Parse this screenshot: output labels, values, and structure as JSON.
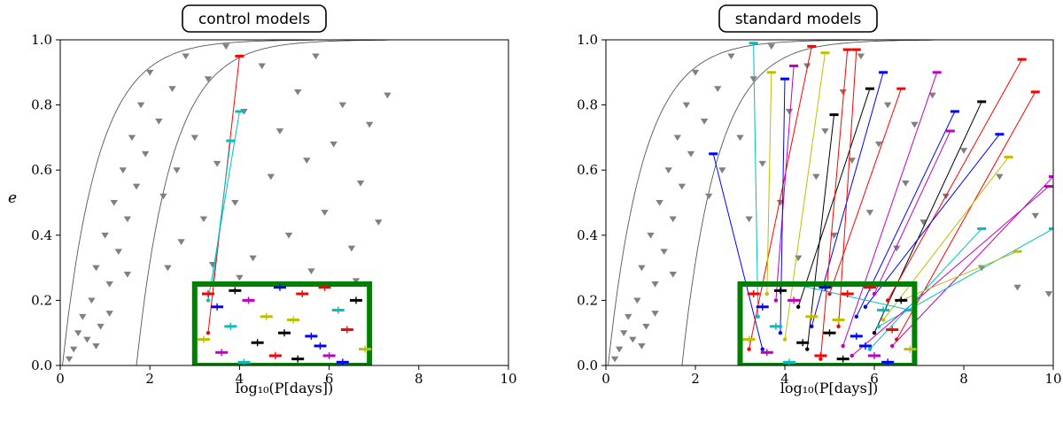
{
  "chart_data": [
    {
      "type": "scatter",
      "title": "control models",
      "xlabel": "log₁₀(P[days])",
      "ylabel": "e",
      "xlim": [
        0,
        10
      ],
      "ylim": [
        0,
        1
      ],
      "xticks": [
        "0",
        "2",
        "4",
        "6",
        "8",
        "10"
      ],
      "yticks": [
        "0.0",
        "0.2",
        "0.4",
        "0.6",
        "0.8",
        "1.0"
      ],
      "grid": false,
      "colors": {
        "observed": "#808080",
        "box": "#008000",
        "curves": "#555555",
        "models": [
          "#ff0000",
          "#0000ff",
          "#00bfbf",
          "#bf00bf",
          "#bfbf00",
          "#000000"
        ]
      },
      "box": {
        "x": [
          3,
          6.9
        ],
        "e": [
          0,
          0.25
        ]
      },
      "curves": [
        {
          "x0": 0.05,
          "note": ""
        },
        {
          "x0": 1.7,
          "note": ""
        }
      ],
      "observed_marker": "triangle-down",
      "observed_points": [
        [
          0.2,
          0.02
        ],
        [
          0.3,
          0.05
        ],
        [
          0.4,
          0.1
        ],
        [
          0.5,
          0.15
        ],
        [
          0.6,
          0.08
        ],
        [
          0.7,
          0.2
        ],
        [
          0.8,
          0.3
        ],
        [
          0.9,
          0.12
        ],
        [
          1.0,
          0.4
        ],
        [
          1.1,
          0.25
        ],
        [
          1.2,
          0.5
        ],
        [
          1.3,
          0.35
        ],
        [
          1.4,
          0.6
        ],
        [
          1.5,
          0.45
        ],
        [
          1.6,
          0.7
        ],
        [
          1.7,
          0.55
        ],
        [
          1.8,
          0.8
        ],
        [
          1.9,
          0.65
        ],
        [
          2.0,
          0.9
        ],
        [
          2.2,
          0.75
        ],
        [
          2.3,
          0.52
        ],
        [
          2.5,
          0.85
        ],
        [
          2.6,
          0.6
        ],
        [
          2.8,
          0.95
        ],
        [
          3.0,
          0.7
        ],
        [
          3.2,
          0.45
        ],
        [
          3.3,
          0.88
        ],
        [
          3.5,
          0.62
        ],
        [
          3.7,
          0.98
        ],
        [
          3.9,
          0.5
        ],
        [
          4.1,
          0.78
        ],
        [
          4.3,
          0.33
        ],
        [
          4.5,
          0.92
        ],
        [
          4.7,
          0.58
        ],
        [
          4.9,
          0.72
        ],
        [
          5.1,
          0.4
        ],
        [
          5.3,
          0.84
        ],
        [
          5.5,
          0.63
        ],
        [
          5.7,
          0.95
        ],
        [
          5.9,
          0.47
        ],
        [
          6.1,
          0.68
        ],
        [
          6.3,
          0.8
        ],
        [
          6.5,
          0.36
        ],
        [
          6.7,
          0.56
        ],
        [
          6.9,
          0.74
        ],
        [
          7.1,
          0.44
        ],
        [
          7.3,
          0.83
        ],
        [
          2.4,
          0.3
        ],
        [
          2.7,
          0.38
        ],
        [
          1.5,
          0.28
        ],
        [
          0.8,
          0.06
        ],
        [
          1.1,
          0.16
        ],
        [
          3.4,
          0.31
        ],
        [
          4.0,
          0.27
        ],
        [
          5.6,
          0.29
        ],
        [
          6.6,
          0.26
        ]
      ],
      "tracks": [
        {
          "color": "#ff0000",
          "from": [
            3.3,
            0.1
          ],
          "to": [
            4.0,
            0.95
          ]
        },
        {
          "color": "#00bfbf",
          "from": [
            3.3,
            0.2
          ],
          "to": [
            4.0,
            0.78
          ]
        },
        {
          "color": "#00bfbf",
          "from": [
            3.4,
            0.25
          ],
          "to": [
            3.8,
            0.69
          ]
        }
      ],
      "model_points": [
        [
          3.3,
          0.22,
          "#ff0000"
        ],
        [
          3.5,
          0.18,
          "#0000ff"
        ],
        [
          3.8,
          0.12,
          "#00bfbf"
        ],
        [
          4.2,
          0.2,
          "#bf00bf"
        ],
        [
          4.6,
          0.15,
          "#bfbf00"
        ],
        [
          5.0,
          0.1,
          "#000000"
        ],
        [
          5.4,
          0.22,
          "#ff0000"
        ],
        [
          5.8,
          0.06,
          "#0000ff"
        ],
        [
          6.2,
          0.17,
          "#00bfbf"
        ],
        [
          6.6,
          0.2,
          "#000000"
        ],
        [
          3.6,
          0.04,
          "#bf00bf"
        ],
        [
          4.4,
          0.07,
          "#000000"
        ],
        [
          4.8,
          0.03,
          "#ff0000"
        ],
        [
          5.2,
          0.14,
          "#bfbf00"
        ],
        [
          5.6,
          0.09,
          "#0000ff"
        ],
        [
          6.0,
          0.03,
          "#bf00bf"
        ],
        [
          6.4,
          0.11,
          "#ff0000"
        ],
        [
          6.8,
          0.05,
          "#bfbf00"
        ],
        [
          3.9,
          0.23,
          "#000000"
        ],
        [
          4.9,
          0.24,
          "#0000ff"
        ],
        [
          5.9,
          0.24,
          "#ff0000"
        ],
        [
          3.2,
          0.08,
          "#bfbf00"
        ],
        [
          4.1,
          0.01,
          "#00bfbf"
        ],
        [
          5.3,
          0.02,
          "#000000"
        ],
        [
          6.3,
          0.01,
          "#0000ff"
        ]
      ]
    },
    {
      "type": "scatter",
      "title": "standard models",
      "xlabel": "log₁₀(P[days])",
      "ylabel": "",
      "xlim": [
        0,
        10
      ],
      "ylim": [
        0,
        1
      ],
      "xticks": [
        "0",
        "2",
        "4",
        "6",
        "8",
        "10"
      ],
      "yticks": [
        "0.0",
        "0.2",
        "0.4",
        "0.6",
        "0.8",
        "1.0"
      ],
      "grid": false,
      "colors": {
        "observed": "#808080",
        "box": "#008000",
        "curves": "#555555",
        "models": [
          "#ff0000",
          "#0000ff",
          "#00bfbf",
          "#bf00bf",
          "#bfbf00",
          "#000000"
        ]
      },
      "box": {
        "x": [
          3,
          6.9
        ],
        "e": [
          0,
          0.25
        ]
      },
      "observed_marker": "triangle-down",
      "observed_points": [
        [
          0.2,
          0.02
        ],
        [
          0.3,
          0.05
        ],
        [
          0.4,
          0.1
        ],
        [
          0.5,
          0.15
        ],
        [
          0.6,
          0.08
        ],
        [
          0.7,
          0.2
        ],
        [
          0.8,
          0.3
        ],
        [
          0.9,
          0.12
        ],
        [
          1.0,
          0.4
        ],
        [
          1.1,
          0.25
        ],
        [
          1.2,
          0.5
        ],
        [
          1.3,
          0.35
        ],
        [
          1.4,
          0.6
        ],
        [
          1.5,
          0.45
        ],
        [
          1.6,
          0.7
        ],
        [
          1.7,
          0.55
        ],
        [
          1.8,
          0.8
        ],
        [
          1.9,
          0.65
        ],
        [
          2.0,
          0.9
        ],
        [
          2.2,
          0.75
        ],
        [
          2.3,
          0.52
        ],
        [
          2.5,
          0.85
        ],
        [
          2.6,
          0.6
        ],
        [
          2.8,
          0.95
        ],
        [
          3.0,
          0.7
        ],
        [
          3.2,
          0.45
        ],
        [
          3.3,
          0.88
        ],
        [
          3.5,
          0.62
        ],
        [
          3.7,
          0.98
        ],
        [
          3.9,
          0.5
        ],
        [
          4.1,
          0.78
        ],
        [
          4.3,
          0.33
        ],
        [
          4.5,
          0.92
        ],
        [
          4.7,
          0.58
        ],
        [
          4.9,
          0.72
        ],
        [
          5.1,
          0.4
        ],
        [
          5.3,
          0.84
        ],
        [
          5.5,
          0.63
        ],
        [
          5.7,
          0.95
        ],
        [
          5.9,
          0.47
        ],
        [
          6.1,
          0.68
        ],
        [
          6.3,
          0.8
        ],
        [
          6.5,
          0.36
        ],
        [
          6.7,
          0.56
        ],
        [
          6.9,
          0.74
        ],
        [
          7.1,
          0.44
        ],
        [
          7.3,
          0.83
        ],
        [
          7.6,
          0.52
        ],
        [
          8.0,
          0.66
        ],
        [
          8.4,
          0.3
        ],
        [
          8.8,
          0.58
        ],
        [
          9.2,
          0.24
        ],
        [
          9.6,
          0.46
        ],
        [
          9.9,
          0.22
        ],
        [
          1.5,
          0.28
        ],
        [
          0.8,
          0.06
        ],
        [
          1.1,
          0.16
        ]
      ],
      "tracks": [
        {
          "color": "#0000ff",
          "from": [
            3.5,
            0.05
          ],
          "to": [
            2.4,
            0.65
          ]
        },
        {
          "color": "#ff0000",
          "from": [
            3.2,
            0.05
          ],
          "to": [
            4.6,
            0.98
          ]
        },
        {
          "color": "#00bfbf",
          "from": [
            3.4,
            0.15
          ],
          "to": [
            3.3,
            0.99
          ]
        },
        {
          "color": "#bf00bf",
          "from": [
            3.8,
            0.2
          ],
          "to": [
            4.2,
            0.92
          ]
        },
        {
          "color": "#bfbf00",
          "from": [
            4.0,
            0.08
          ],
          "to": [
            4.9,
            0.96
          ]
        },
        {
          "color": "#000000",
          "from": [
            4.3,
            0.18
          ],
          "to": [
            5.9,
            0.85
          ]
        },
        {
          "color": "#0000ff",
          "from": [
            4.6,
            0.12
          ],
          "to": [
            6.2,
            0.9
          ]
        },
        {
          "color": "#ff0000",
          "from": [
            5.0,
            0.22
          ],
          "to": [
            6.6,
            0.85
          ]
        },
        {
          "color": "#bf00bf",
          "from": [
            5.3,
            0.06
          ],
          "to": [
            7.4,
            0.9
          ]
        },
        {
          "color": "#0000ff",
          "from": [
            5.6,
            0.15
          ],
          "to": [
            7.8,
            0.78
          ]
        },
        {
          "color": "#000000",
          "from": [
            6.0,
            0.1
          ],
          "to": [
            8.4,
            0.81
          ]
        },
        {
          "color": "#ff0000",
          "from": [
            6.3,
            0.2
          ],
          "to": [
            9.3,
            0.94
          ]
        },
        {
          "color": "#ff0000",
          "from": [
            6.5,
            0.08
          ],
          "to": [
            9.6,
            0.84
          ]
        },
        {
          "color": "#0000ff",
          "from": [
            5.8,
            0.18
          ],
          "to": [
            8.8,
            0.71
          ]
        },
        {
          "color": "#bf00bf",
          "from": [
            6.0,
            0.22
          ],
          "to": [
            7.7,
            0.72
          ]
        },
        {
          "color": "#bfbf00",
          "from": [
            6.2,
            0.14
          ],
          "to": [
            9.0,
            0.64
          ]
        },
        {
          "color": "#bf00bf",
          "from": [
            6.4,
            0.06
          ],
          "to": [
            10.0,
            0.58
          ]
        },
        {
          "color": "#00bfbf",
          "from": [
            6.1,
            0.12
          ],
          "to": [
            10.0,
            0.42
          ]
        },
        {
          "color": "#bf00bf",
          "from": [
            5.5,
            0.03
          ],
          "to": [
            9.9,
            0.55
          ]
        },
        {
          "color": "#00bfbf",
          "from": [
            5.9,
            0.05
          ],
          "to": [
            8.4,
            0.42
          ]
        },
        {
          "color": "#bfbf00",
          "from": [
            6.6,
            0.2
          ],
          "to": [
            9.2,
            0.35
          ]
        },
        {
          "color": "#00bfbf",
          "from": [
            4.2,
            0.25
          ],
          "to": [
            6.8,
            0.17
          ]
        },
        {
          "color": "#ff0000",
          "from": [
            4.8,
            0.02
          ],
          "to": [
            5.4,
            0.97
          ]
        },
        {
          "color": "#0000ff",
          "from": [
            3.9,
            0.1
          ],
          "to": [
            4.0,
            0.88
          ]
        },
        {
          "color": "#bfbf00",
          "from": [
            3.6,
            0.22
          ],
          "to": [
            3.7,
            0.9
          ]
        },
        {
          "color": "#000000",
          "from": [
            4.5,
            0.05
          ],
          "to": [
            5.1,
            0.77
          ]
        },
        {
          "color": "#ff0000",
          "from": [
            5.2,
            0.12
          ],
          "to": [
            5.6,
            0.97
          ]
        }
      ],
      "model_points": [
        [
          3.3,
          0.22,
          "#ff0000"
        ],
        [
          3.5,
          0.18,
          "#0000ff"
        ],
        [
          3.8,
          0.12,
          "#00bfbf"
        ],
        [
          4.2,
          0.2,
          "#bf00bf"
        ],
        [
          4.6,
          0.15,
          "#bfbf00"
        ],
        [
          5.0,
          0.1,
          "#000000"
        ],
        [
          5.4,
          0.22,
          "#ff0000"
        ],
        [
          5.8,
          0.06,
          "#0000ff"
        ],
        [
          6.2,
          0.17,
          "#00bfbf"
        ],
        [
          6.6,
          0.2,
          "#000000"
        ],
        [
          3.6,
          0.04,
          "#bf00bf"
        ],
        [
          4.4,
          0.07,
          "#000000"
        ],
        [
          4.8,
          0.03,
          "#ff0000"
        ],
        [
          5.2,
          0.14,
          "#bfbf00"
        ],
        [
          5.6,
          0.09,
          "#0000ff"
        ],
        [
          6.0,
          0.03,
          "#bf00bf"
        ],
        [
          6.4,
          0.11,
          "#ff0000"
        ],
        [
          6.8,
          0.05,
          "#bfbf00"
        ],
        [
          3.9,
          0.23,
          "#000000"
        ],
        [
          4.9,
          0.24,
          "#0000ff"
        ],
        [
          5.9,
          0.24,
          "#ff0000"
        ],
        [
          3.2,
          0.08,
          "#bfbf00"
        ],
        [
          4.1,
          0.01,
          "#00bfbf"
        ],
        [
          5.3,
          0.02,
          "#000000"
        ],
        [
          6.3,
          0.01,
          "#0000ff"
        ]
      ]
    }
  ]
}
